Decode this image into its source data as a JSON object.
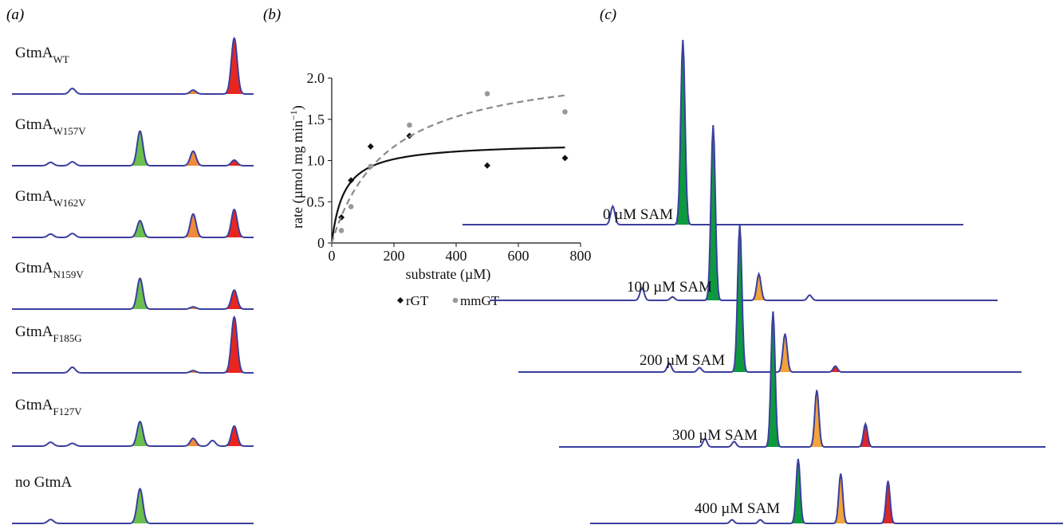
{
  "panels": {
    "a": {
      "letter": "(a)"
    },
    "b": {
      "letter": "(b)"
    },
    "c": {
      "letter": "(c)"
    }
  },
  "chart_data": [
    {
      "id": "a",
      "type": "line",
      "description_of_encoding": "stacked chromatogram traces; peak shading colors",
      "peak_colors": {
        "green": "#6bbf4e",
        "orange": "#f08a3c",
        "red": "#e8261f",
        "line": "#3b3f9e"
      },
      "traces": [
        {
          "name": "GtmA",
          "sub": "WT",
          "peaks": [
            {
              "x": 0.25,
              "h": 0.1,
              "fill": ""
            },
            {
              "x": 0.75,
              "h": 0.07,
              "fill": "orange"
            },
            {
              "x": 0.92,
              "h": 1.0,
              "fill": "red"
            }
          ]
        },
        {
          "name": "GtmA",
          "sub": "W157V",
          "peaks": [
            {
              "x": 0.16,
              "h": 0.06,
              "fill": ""
            },
            {
              "x": 0.25,
              "h": 0.07,
              "fill": ""
            },
            {
              "x": 0.53,
              "h": 0.62,
              "fill": "green"
            },
            {
              "x": 0.75,
              "h": 0.26,
              "fill": "orange"
            },
            {
              "x": 0.92,
              "h": 0.1,
              "fill": "red"
            }
          ]
        },
        {
          "name": "GtmA",
          "sub": "W162V",
          "peaks": [
            {
              "x": 0.16,
              "h": 0.06,
              "fill": ""
            },
            {
              "x": 0.25,
              "h": 0.07,
              "fill": ""
            },
            {
              "x": 0.53,
              "h": 0.3,
              "fill": "green"
            },
            {
              "x": 0.75,
              "h": 0.42,
              "fill": "orange"
            },
            {
              "x": 0.92,
              "h": 0.5,
              "fill": "red"
            }
          ]
        },
        {
          "name": "GtmA",
          "sub": "N159V",
          "peaks": [
            {
              "x": 0.53,
              "h": 0.55,
              "fill": "green"
            },
            {
              "x": 0.75,
              "h": 0.04,
              "fill": "orange"
            },
            {
              "x": 0.92,
              "h": 0.34,
              "fill": "red"
            }
          ]
        },
        {
          "name": "GtmA",
          "sub": "F185G",
          "peaks": [
            {
              "x": 0.25,
              "h": 0.1,
              "fill": ""
            },
            {
              "x": 0.75,
              "h": 0.04,
              "fill": "orange"
            },
            {
              "x": 0.92,
              "h": 1.0,
              "fill": "red"
            }
          ]
        },
        {
          "name": "GtmA",
          "sub": "F127V",
          "peaks": [
            {
              "x": 0.16,
              "h": 0.07,
              "fill": ""
            },
            {
              "x": 0.25,
              "h": 0.05,
              "fill": ""
            },
            {
              "x": 0.53,
              "h": 0.44,
              "fill": "green"
            },
            {
              "x": 0.75,
              "h": 0.14,
              "fill": "orange"
            },
            {
              "x": 0.83,
              "h": 0.1,
              "fill": ""
            },
            {
              "x": 0.92,
              "h": 0.36,
              "fill": "red"
            }
          ]
        },
        {
          "name": "no GtmA",
          "sub": "",
          "peaks": [
            {
              "x": 0.16,
              "h": 0.07,
              "fill": ""
            },
            {
              "x": 0.53,
              "h": 0.62,
              "fill": "green"
            }
          ]
        }
      ]
    },
    {
      "id": "b",
      "type": "scatter",
      "xlabel": "substrate (µM)",
      "ylabel": "rate (µmol mg min",
      "ylabel_sup": "−1",
      "ylabel_close": ")",
      "xlim": [
        0,
        800
      ],
      "ylim": [
        0,
        2.0
      ],
      "xticks": [
        0,
        200,
        400,
        600,
        800
      ],
      "yticks": [
        0,
        0.5,
        1.0,
        1.5,
        2.0
      ],
      "ytick_labels": [
        "0",
        "0.5",
        "1.0",
        "1.5",
        "2.0"
      ],
      "series": [
        {
          "name": "rGT",
          "color": "#111111",
          "marker": "diamond",
          "x": [
            31,
            62,
            125,
            250,
            500,
            750
          ],
          "y": [
            0.31,
            0.76,
            1.17,
            1.3,
            0.94,
            1.03
          ],
          "fit": {
            "Vmax": 1.22,
            "Km": 40,
            "style": "solid"
          }
        },
        {
          "name": "mmGT",
          "color": "#999999",
          "marker": "circle",
          "x": [
            31,
            62,
            125,
            250,
            500,
            750
          ],
          "y": [
            0.15,
            0.44,
            0.93,
            1.43,
            1.81,
            1.59
          ],
          "fit": {
            "Vmax": 2.22,
            "Km": 180,
            "style": "dashed"
          }
        }
      ],
      "legend_position": "bottom"
    },
    {
      "id": "c",
      "type": "line",
      "traces": [
        {
          "label": "0 µM SAM",
          "peaks": [
            {
              "x": 0.3,
              "h": 0.1,
              "fill": ""
            },
            {
              "x": 0.44,
              "h": 1.0,
              "fill": "green"
            }
          ]
        },
        {
          "label": "100 µM SAM",
          "peaks": [
            {
              "x": 0.3,
              "h": 0.07,
              "fill": ""
            },
            {
              "x": 0.36,
              "h": 0.02,
              "fill": ""
            },
            {
              "x": 0.44,
              "h": 1.0,
              "fill": "green"
            },
            {
              "x": 0.53,
              "h": 0.15,
              "fill": "orange"
            },
            {
              "x": 0.63,
              "h": 0.03,
              "fill": ""
            }
          ]
        },
        {
          "label": "200 µM SAM",
          "peaks": [
            {
              "x": 0.3,
              "h": 0.06,
              "fill": ""
            },
            {
              "x": 0.36,
              "h": 0.03,
              "fill": ""
            },
            {
              "x": 0.44,
              "h": 1.0,
              "fill": "green"
            },
            {
              "x": 0.53,
              "h": 0.26,
              "fill": "orange"
            },
            {
              "x": 0.63,
              "h": 0.04,
              "fill": "red"
            }
          ]
        },
        {
          "label": "300 µM SAM",
          "peaks": [
            {
              "x": 0.3,
              "h": 0.06,
              "fill": ""
            },
            {
              "x": 0.36,
              "h": 0.04,
              "fill": ""
            },
            {
              "x": 0.44,
              "h": 1.0,
              "fill": "green"
            },
            {
              "x": 0.53,
              "h": 0.42,
              "fill": "orange"
            },
            {
              "x": 0.63,
              "h": 0.17,
              "fill": "red"
            }
          ]
        },
        {
          "label": "400 µM SAM",
          "peaks": [
            {
              "x": 0.3,
              "h": 0.05,
              "fill": ""
            },
            {
              "x": 0.36,
              "h": 0.05,
              "fill": ""
            },
            {
              "x": 0.44,
              "h": 0.88,
              "fill": "green"
            },
            {
              "x": 0.53,
              "h": 0.68,
              "fill": "orange"
            },
            {
              "x": 0.63,
              "h": 0.58,
              "fill": "red"
            }
          ]
        }
      ]
    }
  ]
}
